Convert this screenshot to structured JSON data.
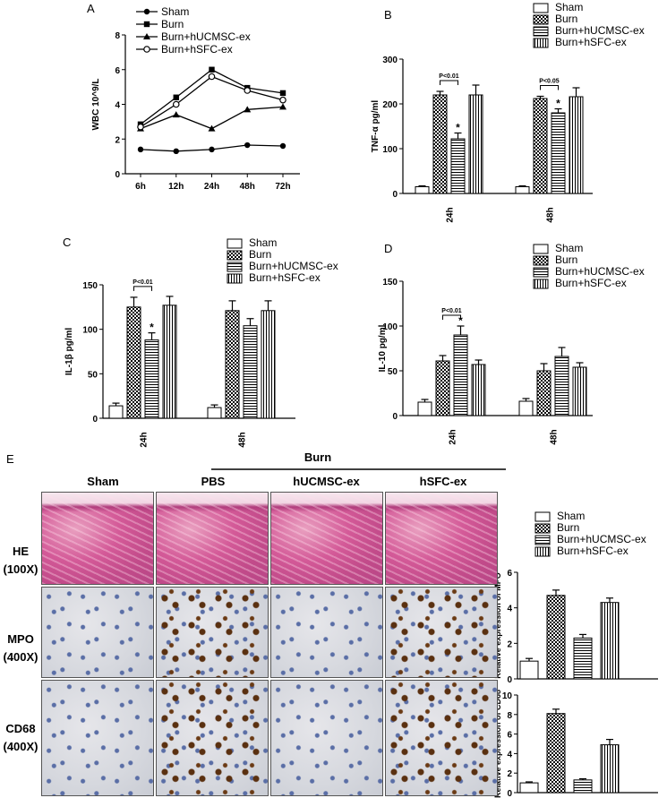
{
  "panel_labels": {
    "A": "A",
    "B": "B",
    "C": "C",
    "D": "D",
    "E": "E"
  },
  "legend_labels": [
    "Sham",
    "Burn",
    "Burn+hUCMSC-ex",
    "Burn+hSFC-ex"
  ],
  "colors": {
    "line": "#000000",
    "background": "#ffffff"
  },
  "chart_data": [
    {
      "type": "line",
      "panel": "A",
      "ylabel": "WBC 10^9/L",
      "categories": [
        "6h",
        "12h",
        "24h",
        "48h",
        "72h"
      ],
      "ylim": [
        0,
        8
      ],
      "yticks": [
        "0",
        "2",
        "4",
        "6",
        "8"
      ],
      "series": [
        {
          "name": "Sham",
          "marker": "circle-filled",
          "values": [
            1.4,
            1.3,
            1.4,
            1.65,
            1.6
          ]
        },
        {
          "name": "Burn",
          "marker": "square-filled",
          "values": [
            2.85,
            4.4,
            6.0,
            4.95,
            4.65
          ]
        },
        {
          "name": "Burn+hUCMSC-ex",
          "marker": "triangle-filled",
          "values": [
            2.6,
            3.4,
            2.6,
            3.7,
            3.85
          ]
        },
        {
          "name": "Burn+hSFC-ex",
          "marker": "circle-open",
          "values": [
            2.7,
            4.0,
            5.6,
            4.8,
            4.25
          ]
        }
      ]
    },
    {
      "type": "bar",
      "panel": "B",
      "ylabel": "TNF-α pg/ml",
      "categories": [
        "24h",
        "48h"
      ],
      "ylim": [
        0,
        300
      ],
      "yticks": [
        "0",
        "100",
        "200",
        "300"
      ],
      "series": [
        {
          "name": "Sham",
          "values": [
            15,
            15
          ],
          "errors": [
            2,
            2
          ]
        },
        {
          "name": "Burn",
          "values": [
            220,
            212
          ],
          "errors": [
            8,
            5
          ]
        },
        {
          "name": "Burn+hUCMSC-ex",
          "values": [
            122,
            180
          ],
          "errors": [
            13,
            9
          ]
        },
        {
          "name": "Burn+hSFC-ex",
          "values": [
            220,
            216
          ],
          "errors": [
            22,
            20
          ]
        }
      ],
      "annotations": [
        {
          "text": "P<0.01",
          "group": 0,
          "from": 1,
          "to": 2
        },
        {
          "text": "P<0.05",
          "group": 1,
          "from": 1,
          "to": 2
        }
      ],
      "stars": [
        {
          "group": 0,
          "series": 2,
          "text": "*"
        },
        {
          "group": 1,
          "series": 2,
          "text": "*"
        }
      ]
    },
    {
      "type": "bar",
      "panel": "C",
      "ylabel": "IL-1β pg/ml",
      "categories": [
        "24h",
        "48h"
      ],
      "ylim": [
        0,
        150
      ],
      "yticks": [
        "0",
        "50",
        "100",
        "150"
      ],
      "series": [
        {
          "name": "Sham",
          "values": [
            14,
            12
          ],
          "errors": [
            3,
            3
          ]
        },
        {
          "name": "Burn",
          "values": [
            125,
            121
          ],
          "errors": [
            11,
            11
          ]
        },
        {
          "name": "Burn+hUCMSC-ex",
          "values": [
            88,
            104
          ],
          "errors": [
            8,
            8
          ]
        },
        {
          "name": "Burn+hSFC-ex",
          "values": [
            127,
            121
          ],
          "errors": [
            10,
            11
          ]
        }
      ],
      "annotations": [
        {
          "text": "P<0.01",
          "group": 0,
          "from": 1,
          "to": 2
        }
      ],
      "stars": [
        {
          "group": 0,
          "series": 2,
          "text": "*"
        }
      ]
    },
    {
      "type": "bar",
      "panel": "D",
      "ylabel": "IL-10 pg/ml",
      "categories": [
        "24h",
        "48h"
      ],
      "ylim": [
        0,
        150
      ],
      "yticks": [
        "0",
        "50",
        "100",
        "150"
      ],
      "series": [
        {
          "name": "Sham",
          "values": [
            15,
            16
          ],
          "errors": [
            3,
            3
          ]
        },
        {
          "name": "Burn",
          "values": [
            61,
            50
          ],
          "errors": [
            6,
            8
          ]
        },
        {
          "name": "Burn+hUCMSC-ex",
          "values": [
            90,
            66
          ],
          "errors": [
            10,
            10
          ]
        },
        {
          "name": "Burn+hSFC-ex",
          "values": [
            57,
            54
          ],
          "errors": [
            5,
            5
          ]
        }
      ],
      "annotations": [
        {
          "text": "P<0.01",
          "group": 0,
          "from": 1,
          "to": 2
        }
      ],
      "stars": [
        {
          "group": 0,
          "series": 2,
          "text": "*"
        }
      ]
    },
    {
      "type": "bar",
      "panel": "E1",
      "ylabel": "Relative expression of MPO",
      "categories": [
        ""
      ],
      "ylim": [
        0,
        6
      ],
      "yticks": [
        "0",
        "2",
        "4",
        "6"
      ],
      "series": [
        {
          "name": "Sham",
          "values": [
            1.0
          ],
          "errors": [
            0.15
          ]
        },
        {
          "name": "Burn",
          "values": [
            4.7
          ],
          "errors": [
            0.3
          ]
        },
        {
          "name": "Burn+hUCMSC-ex",
          "values": [
            2.3
          ],
          "errors": [
            0.2
          ]
        },
        {
          "name": "Burn+hSFC-ex",
          "values": [
            4.3
          ],
          "errors": [
            0.25
          ]
        }
      ]
    },
    {
      "type": "bar",
      "panel": "E2",
      "ylabel": "Relative expression of CD68",
      "categories": [
        ""
      ],
      "ylim": [
        0,
        10
      ],
      "yticks": [
        "0",
        "2",
        "4",
        "6",
        "8",
        "10"
      ],
      "series": [
        {
          "name": "Sham",
          "values": [
            1.0
          ],
          "errors": [
            0.1
          ]
        },
        {
          "name": "Burn",
          "values": [
            8.1
          ],
          "errors": [
            0.45
          ]
        },
        {
          "name": "Burn+hUCMSC-ex",
          "values": [
            1.3
          ],
          "errors": [
            0.12
          ]
        },
        {
          "name": "Burn+hSFC-ex",
          "values": [
            4.9
          ],
          "errors": [
            0.55
          ]
        }
      ]
    }
  ],
  "micrographs": {
    "burn_label": "Burn",
    "columns": [
      "Sham",
      "PBS",
      "hUCMSC-ex",
      "hSFC-ex"
    ],
    "rows": [
      {
        "stain": "HE",
        "mag": "(100X)"
      },
      {
        "stain": "MPO",
        "mag": "(400X)"
      },
      {
        "stain": "CD68",
        "mag": "(400X)"
      }
    ]
  }
}
